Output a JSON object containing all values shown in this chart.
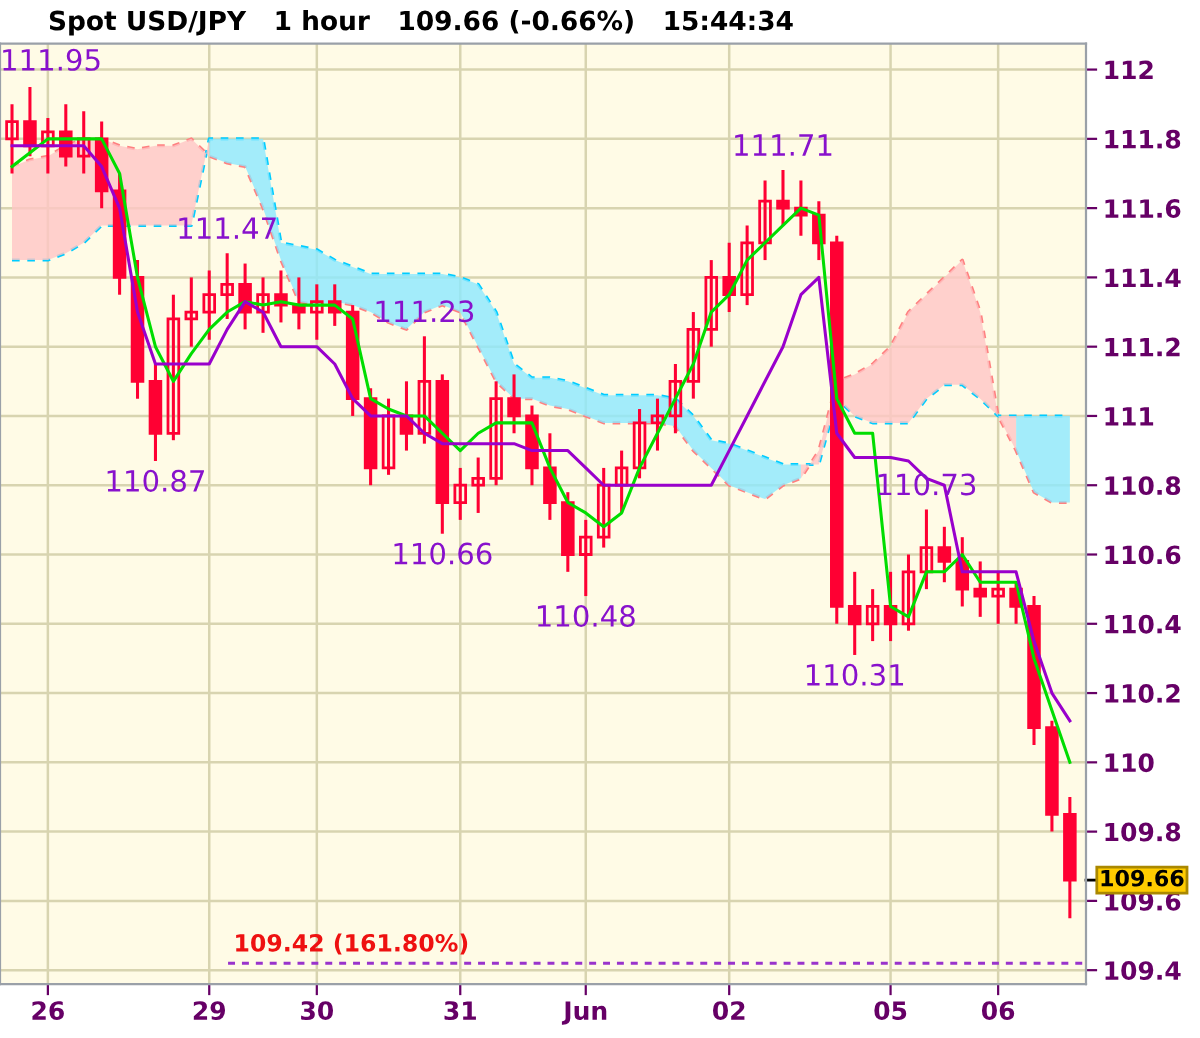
{
  "chart_data": {
    "type": "candlestick",
    "title": "Spot USD/JPY   1 hour   109.66 (-0.66%)   15:44:34",
    "color": "#ff0033",
    "categories": [
      null,
      null,
      "26",
      null,
      null,
      null,
      null,
      null,
      null,
      null,
      null,
      "29",
      null,
      null,
      null,
      null,
      null,
      "30",
      null,
      null,
      null,
      null,
      null,
      null,
      null,
      "31",
      null,
      null,
      null,
      null,
      null,
      null,
      "Jun",
      null,
      null,
      null,
      null,
      null,
      null,
      null,
      "02",
      null,
      null,
      null,
      null,
      null,
      null,
      null,
      null,
      "05",
      null,
      null,
      null,
      null,
      null,
      "06",
      null,
      null,
      null,
      null
    ],
    "ohlc": [
      [
        111.8,
        111.9,
        111.7,
        111.85
      ],
      [
        111.85,
        111.95,
        111.75,
        111.78
      ],
      [
        111.78,
        111.86,
        111.7,
        111.82
      ],
      [
        111.82,
        111.9,
        111.72,
        111.75
      ],
      [
        111.75,
        111.88,
        111.7,
        111.8
      ],
      [
        111.8,
        111.85,
        111.6,
        111.65
      ],
      [
        111.65,
        111.7,
        111.35,
        111.4
      ],
      [
        111.4,
        111.45,
        111.05,
        111.1
      ],
      [
        111.1,
        111.15,
        110.87,
        110.95
      ],
      [
        110.95,
        111.35,
        110.93,
        111.28
      ],
      [
        111.28,
        111.4,
        111.2,
        111.3
      ],
      [
        111.3,
        111.42,
        111.22,
        111.35
      ],
      [
        111.35,
        111.47,
        111.28,
        111.38
      ],
      [
        111.38,
        111.44,
        111.25,
        111.3
      ],
      [
        111.3,
        111.4,
        111.24,
        111.35
      ],
      [
        111.35,
        111.42,
        111.27,
        111.32
      ],
      [
        111.32,
        111.4,
        111.25,
        111.3
      ],
      [
        111.3,
        111.38,
        111.22,
        111.33
      ],
      [
        111.33,
        111.38,
        111.26,
        111.3
      ],
      [
        111.3,
        111.32,
        111.0,
        111.05
      ],
      [
        111.05,
        111.08,
        110.8,
        110.85
      ],
      [
        110.85,
        111.05,
        110.83,
        111.0
      ],
      [
        111.0,
        111.1,
        110.9,
        110.95
      ],
      [
        110.95,
        111.23,
        110.92,
        111.1
      ],
      [
        111.1,
        111.12,
        110.66,
        110.75
      ],
      [
        110.75,
        110.85,
        110.7,
        110.8
      ],
      [
        110.8,
        110.88,
        110.72,
        110.82
      ],
      [
        110.82,
        111.1,
        110.8,
        111.05
      ],
      [
        111.05,
        111.12,
        110.95,
        111.0
      ],
      [
        111.0,
        111.03,
        110.8,
        110.85
      ],
      [
        110.85,
        110.95,
        110.7,
        110.75
      ],
      [
        110.75,
        110.78,
        110.55,
        110.6
      ],
      [
        110.6,
        110.7,
        110.48,
        110.65
      ],
      [
        110.65,
        110.85,
        110.62,
        110.8
      ],
      [
        110.8,
        110.9,
        110.72,
        110.85
      ],
      [
        110.85,
        111.02,
        110.82,
        110.98
      ],
      [
        110.98,
        111.05,
        110.9,
        111.0
      ],
      [
        111.0,
        111.15,
        110.95,
        111.1
      ],
      [
        111.1,
        111.3,
        111.05,
        111.25
      ],
      [
        111.25,
        111.45,
        111.2,
        111.4
      ],
      [
        111.4,
        111.5,
        111.3,
        111.35
      ],
      [
        111.35,
        111.55,
        111.32,
        111.5
      ],
      [
        111.5,
        111.68,
        111.45,
        111.62
      ],
      [
        111.62,
        111.71,
        111.55,
        111.6
      ],
      [
        111.6,
        111.68,
        111.52,
        111.58
      ],
      [
        111.58,
        111.62,
        111.45,
        111.5
      ],
      [
        111.5,
        111.52,
        110.4,
        110.45
      ],
      [
        110.45,
        110.55,
        110.31,
        110.4
      ],
      [
        110.4,
        110.5,
        110.35,
        110.45
      ],
      [
        110.45,
        110.55,
        110.35,
        110.4
      ],
      [
        110.4,
        110.6,
        110.38,
        110.55
      ],
      [
        110.55,
        110.73,
        110.5,
        110.62
      ],
      [
        110.62,
        110.68,
        110.52,
        110.58
      ],
      [
        110.58,
        110.65,
        110.45,
        110.5
      ],
      [
        110.5,
        110.58,
        110.42,
        110.48
      ],
      [
        110.48,
        110.55,
        110.4,
        110.5
      ],
      [
        110.5,
        110.52,
        110.4,
        110.45
      ],
      [
        110.45,
        110.48,
        110.05,
        110.1
      ],
      [
        110.1,
        110.12,
        109.8,
        109.85
      ],
      [
        109.85,
        109.9,
        109.55,
        109.66
      ]
    ],
    "series": [
      {
        "type": "line",
        "color": "#00dd00",
        "values": [
          111.72,
          111.76,
          111.8,
          111.8,
          111.8,
          111.8,
          111.7,
          111.4,
          111.2,
          111.1,
          111.18,
          111.25,
          111.3,
          111.33,
          111.32,
          111.33,
          111.32,
          111.32,
          111.32,
          111.28,
          111.05,
          111.02,
          111.0,
          111.0,
          110.95,
          110.9,
          110.95,
          110.98,
          110.98,
          110.98,
          110.85,
          110.75,
          110.72,
          110.68,
          110.72,
          110.85,
          110.95,
          111.05,
          111.15,
          111.3,
          111.35,
          111.45,
          111.5,
          111.55,
          111.6,
          111.58,
          111.05,
          110.95,
          110.95,
          110.45,
          110.42,
          110.55,
          110.55,
          110.6,
          110.52,
          110.52,
          110.52,
          110.3,
          110.15,
          110.0
        ]
      },
      {
        "type": "line",
        "color": "#9900cc",
        "values": [
          111.78,
          111.78,
          111.78,
          111.78,
          111.78,
          111.72,
          111.6,
          111.3,
          111.15,
          111.15,
          111.15,
          111.15,
          111.25,
          111.33,
          111.3,
          111.2,
          111.2,
          111.2,
          111.15,
          111.05,
          111.0,
          111.0,
          111.0,
          110.95,
          110.92,
          110.92,
          110.92,
          110.92,
          110.92,
          110.9,
          110.9,
          110.9,
          110.85,
          110.8,
          110.8,
          110.8,
          110.8,
          110.8,
          110.8,
          110.8,
          110.9,
          111.0,
          111.1,
          111.2,
          111.35,
          111.4,
          110.95,
          110.88,
          110.88,
          110.88,
          110.87,
          110.82,
          110.8,
          110.55,
          110.55,
          110.55,
          110.55,
          110.35,
          110.2,
          110.12
        ]
      },
      {
        "type": "line",
        "color": "#00ccff",
        "line_style": "dashed",
        "values": [
          111.45,
          111.45,
          111.45,
          111.47,
          111.5,
          111.55,
          111.55,
          111.55,
          111.55,
          111.55,
          111.55,
          111.8,
          111.8,
          111.8,
          111.8,
          111.5,
          111.49,
          111.48,
          111.45,
          111.43,
          111.41,
          111.41,
          111.41,
          111.41,
          111.41,
          111.4,
          111.38,
          111.3,
          111.15,
          111.11,
          111.11,
          111.1,
          111.08,
          111.06,
          111.06,
          111.06,
          111.06,
          111.05,
          111.0,
          110.93,
          110.92,
          110.9,
          110.88,
          110.86,
          110.86,
          110.86,
          111.05,
          111.0,
          110.98,
          110.98,
          110.98,
          111.05,
          111.09,
          111.09,
          111.05,
          111.0,
          111.0,
          111.0,
          111.0,
          111.0
        ],
        "lower": [
          null,
          null,
          null,
          null,
          null,
          null,
          null,
          null,
          null,
          null,
          null,
          111.75,
          111.73,
          111.72,
          111.6,
          111.45,
          111.33,
          111.32,
          111.33,
          111.32,
          111.3,
          111.27,
          111.25,
          111.3,
          111.32,
          111.3,
          111.2,
          111.1,
          111.05,
          111.05,
          111.03,
          111.02,
          111.0,
          110.98,
          110.98,
          110.98,
          110.98,
          110.97,
          110.9,
          110.85,
          110.8,
          110.78,
          110.76,
          110.8,
          110.82,
          null,
          null,
          null,
          null,
          null,
          null,
          null,
          null,
          null,
          null,
          null,
          110.9,
          110.78,
          110.75,
          110.75
        ],
        "upper": [
          null,
          null,
          null,
          null,
          null,
          null,
          null,
          null,
          null,
          null,
          null,
          111.8,
          111.8,
          111.8,
          111.8,
          111.5,
          111.49,
          111.48,
          111.45,
          111.43,
          111.41,
          111.41,
          111.41,
          111.41,
          111.41,
          111.4,
          111.38,
          111.3,
          111.15,
          111.11,
          111.11,
          111.1,
          111.08,
          111.06,
          111.06,
          111.06,
          111.06,
          111.05,
          111.0,
          110.93,
          110.92,
          110.9,
          110.88,
          110.86,
          110.86,
          null,
          null,
          null,
          null,
          null,
          null,
          null,
          null,
          null,
          null,
          null,
          111.0,
          111.0,
          111.0,
          111.0
        ]
      },
      {
        "type": "line",
        "color": "#ff8080",
        "line_style": "dashed",
        "values": [
          111.72,
          111.74,
          111.75,
          111.78,
          111.8,
          111.8,
          111.78,
          111.77,
          111.78,
          111.78,
          111.8,
          111.75,
          111.73,
          111.72,
          111.6,
          111.45,
          111.33,
          111.32,
          111.33,
          111.32,
          111.3,
          111.27,
          111.25,
          111.3,
          111.32,
          111.3,
          111.2,
          111.1,
          111.05,
          111.05,
          111.03,
          111.02,
          111.0,
          110.98,
          110.98,
          110.98,
          110.98,
          110.97,
          110.9,
          110.85,
          110.8,
          110.78,
          110.76,
          110.8,
          110.82,
          110.9,
          111.1,
          111.12,
          111.15,
          111.2,
          111.3,
          111.35,
          111.4,
          111.45,
          111.3,
          111.0,
          110.9,
          110.78,
          110.75,
          110.75
        ],
        "lower": [
          111.45,
          111.45,
          111.45,
          111.47,
          111.5,
          111.55,
          111.55,
          111.55,
          111.55,
          111.55,
          111.55,
          111.8,
          null,
          null,
          null,
          null,
          null,
          null,
          null,
          null,
          null,
          null,
          null,
          null,
          null,
          null,
          null,
          null,
          null,
          null,
          null,
          null,
          null,
          null,
          null,
          null,
          null,
          null,
          null,
          null,
          null,
          null,
          null,
          null,
          110.86,
          110.86,
          111.05,
          111.0,
          110.98,
          110.98,
          110.98,
          111.05,
          111.09,
          111.09,
          111.05,
          111.0,
          111.0,
          null,
          null,
          null
        ],
        "upper": [
          111.72,
          111.74,
          111.75,
          111.78,
          111.8,
          111.8,
          111.78,
          111.77,
          111.78,
          111.78,
          111.8,
          111.75,
          null,
          null,
          null,
          null,
          null,
          null,
          null,
          null,
          null,
          null,
          null,
          null,
          null,
          null,
          null,
          null,
          null,
          null,
          null,
          null,
          null,
          null,
          null,
          null,
          null,
          null,
          null,
          null,
          null,
          null,
          null,
          null,
          110.82,
          110.9,
          111.1,
          111.12,
          111.15,
          111.2,
          111.3,
          111.35,
          111.4,
          111.45,
          111.3,
          111.0,
          110.9,
          null,
          null,
          null
        ]
      }
    ],
    "ylim": [
      109.36,
      112.075
    ],
    "yticks": [
      109.4,
      109.6,
      109.8,
      110,
      110.2,
      110.4,
      110.6,
      110.8,
      111,
      111.2,
      111.4,
      111.6,
      111.8,
      112
    ],
    "grid": true,
    "legend": false,
    "ref_lines": [
      {
        "axis": "y",
        "value": 109.42,
        "label": "109.42 (161.80%)",
        "color": "#9933cc",
        "line_style": "dashed"
      }
    ],
    "annotations": [
      "111.95",
      {
        "text": "110.87",
        "y": 110.87
      },
      {
        "text": "111.47",
        "y": 111.47
      },
      {
        "text": "111.23",
        "y": 111.23
      },
      {
        "text": "110.66",
        "y": 110.66
      },
      {
        "text": "110.48",
        "y": 110.48
      },
      {
        "text": "111.71",
        "y": 111.71
      },
      {
        "text": "110.31",
        "y": 110.31
      },
      {
        "text": "110.73",
        "y": 110.73
      },
      "109.66"
    ]
  }
}
